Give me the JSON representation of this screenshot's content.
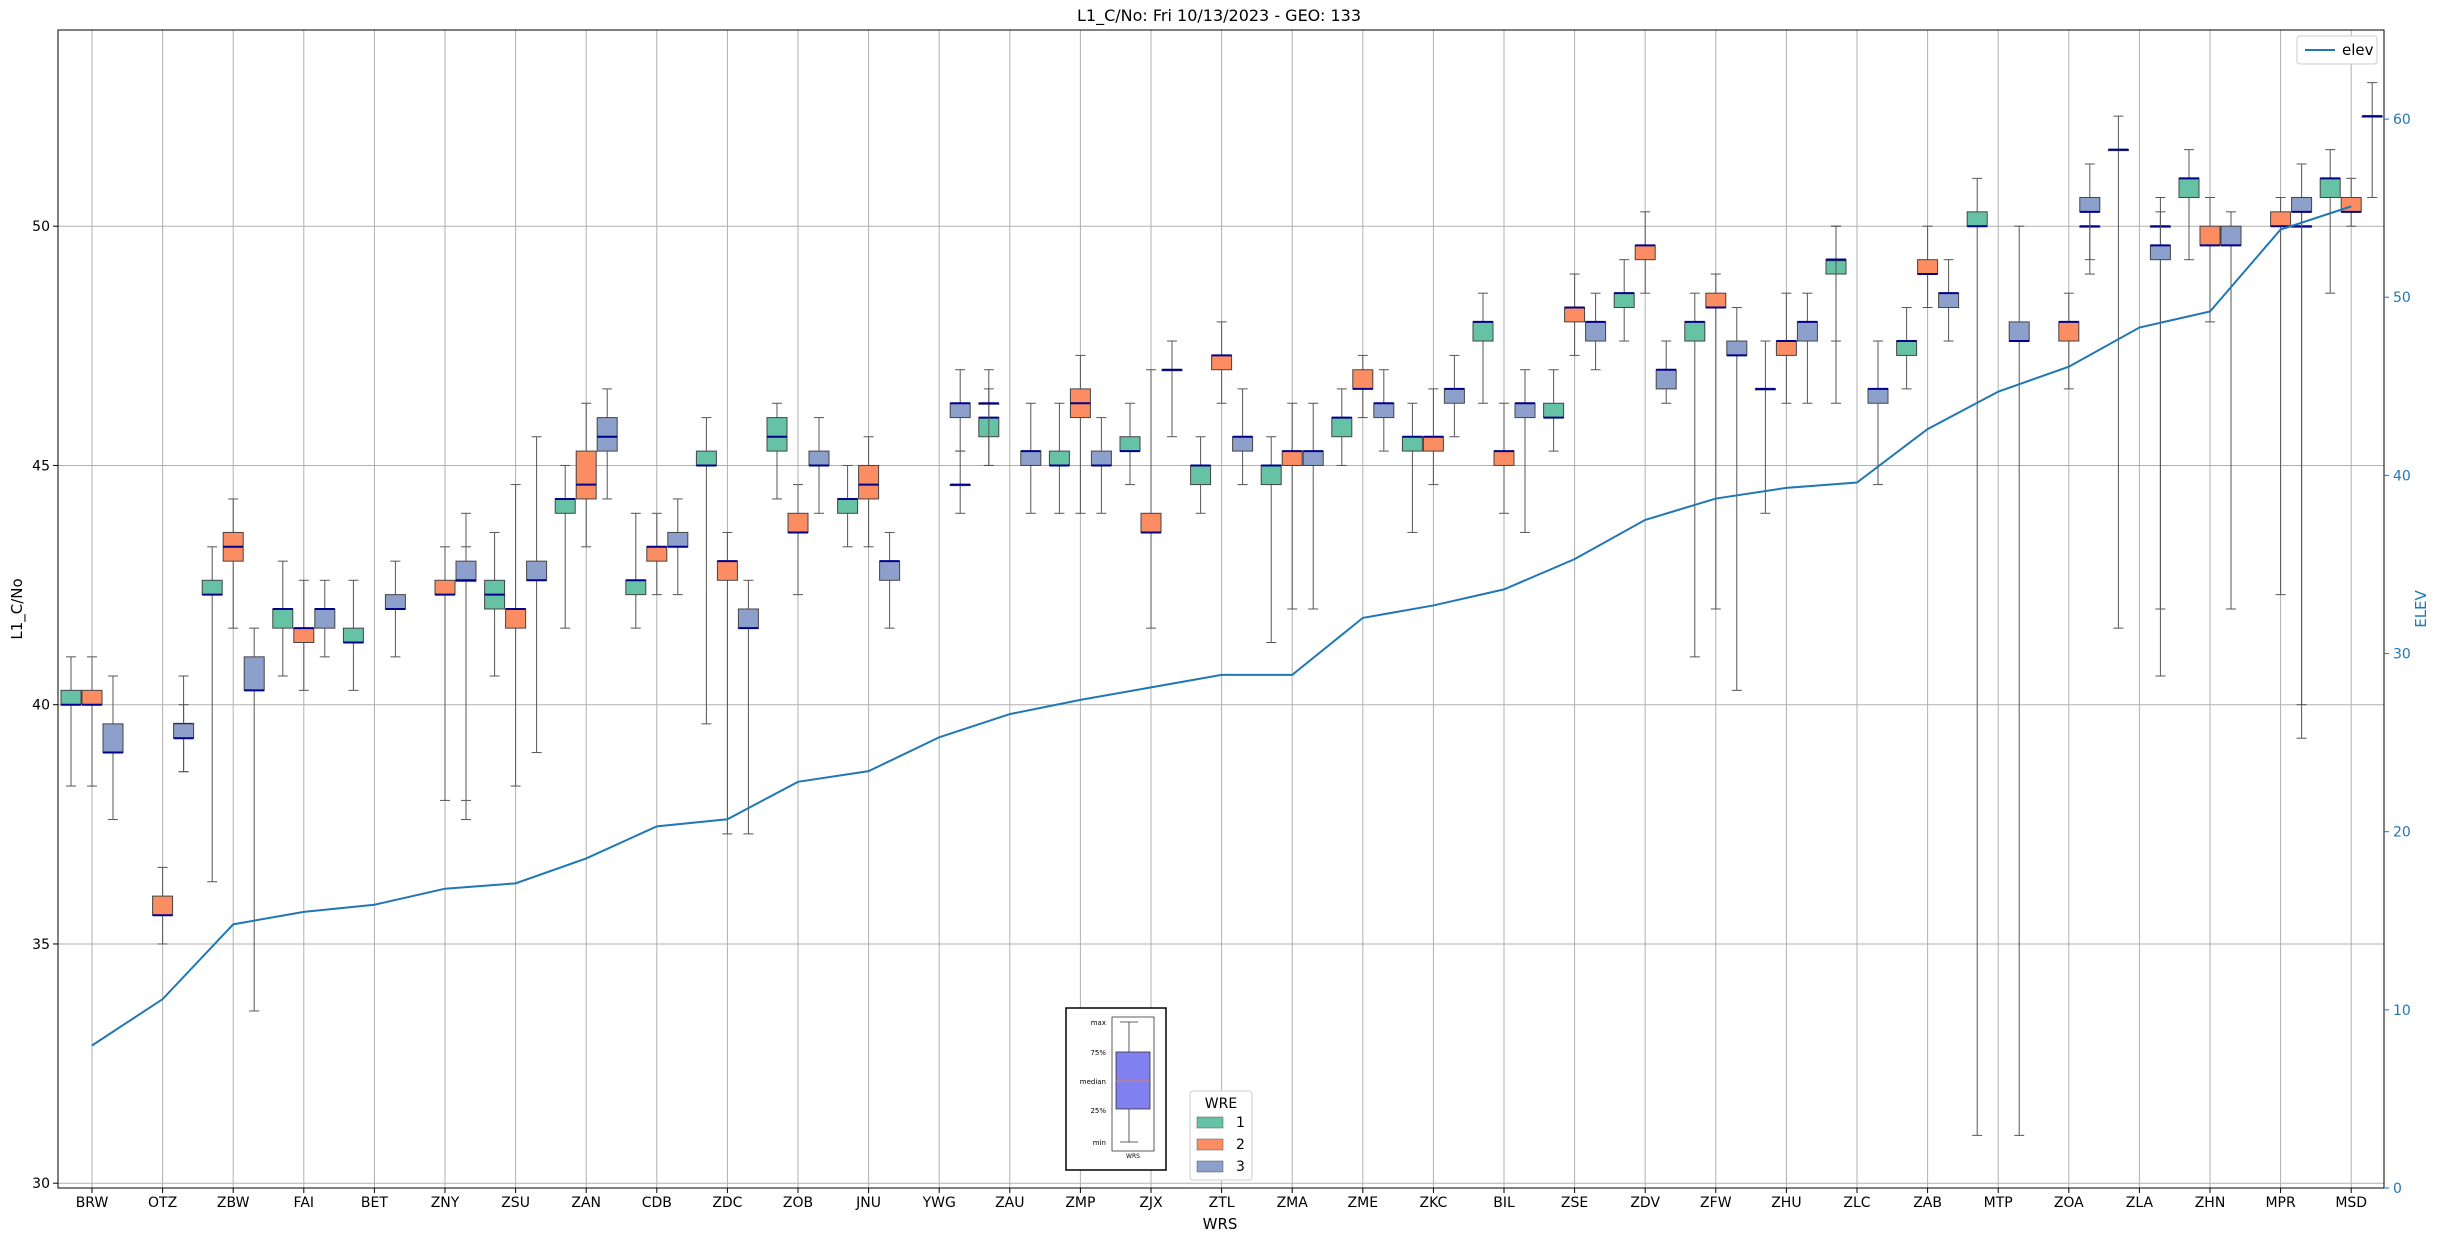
{
  "chart_data": {
    "type": "box",
    "title": "L1_C/No: Fri 10/13/2023 - GEO: 133",
    "xlabel": "WRS",
    "ylabel": "L1_C/No",
    "y2label": "ELEV",
    "ylim": [
      29.9,
      54.1
    ],
    "y2lim": [
      0,
      65
    ],
    "yticks": [
      30,
      35,
      40,
      45,
      50
    ],
    "y2ticks": [
      0,
      10,
      20,
      30,
      40,
      50,
      60
    ],
    "grid": true,
    "categories": [
      "BRW",
      "OTZ",
      "ZBW",
      "FAI",
      "BET",
      "ZNY",
      "ZSU",
      "ZAN",
      "CDB",
      "ZDC",
      "ZOB",
      "JNU",
      "YWG",
      "ZAU",
      "ZMP",
      "ZJX",
      "ZTL",
      "ZMA",
      "ZME",
      "ZKC",
      "BIL",
      "ZSE",
      "ZDV",
      "ZFW",
      "ZHU",
      "ZLC",
      "ZAB",
      "MTP",
      "ZOA",
      "ZLA",
      "ZHN",
      "MPR",
      "MSD"
    ],
    "colors": {
      "1": "#66c2a5",
      "2": "#fc8d62",
      "3": "#8da0cb",
      "median": "#00008b",
      "elev": "#1f77b4",
      "whisker": "#555555"
    },
    "box_series": [
      {
        "name": "1",
        "boxes": [
          {
            "cat": "BRW",
            "min": 38.3,
            "q1": 40.0,
            "med": 40.0,
            "q3": 40.3,
            "max": 41.0
          },
          {
            "cat": "ZBW",
            "min": 36.3,
            "q1": 42.3,
            "med": 42.3,
            "q3": 42.6,
            "max": 43.3
          },
          {
            "cat": "FAI",
            "min": 40.6,
            "q1": 41.6,
            "med": 42.0,
            "q3": 42.0,
            "max": 43.0
          },
          {
            "cat": "BET",
            "min": 40.3,
            "q1": 41.3,
            "med": 41.3,
            "q3": 41.6,
            "max": 42.6
          },
          {
            "cat": "ZSU",
            "min": 40.6,
            "q1": 42.0,
            "med": 42.3,
            "q3": 42.6,
            "max": 43.6
          },
          {
            "cat": "ZAN",
            "min": 41.6,
            "q1": 44.0,
            "med": 44.3,
            "q3": 44.3,
            "max": 45.0
          },
          {
            "cat": "CDB",
            "min": 41.6,
            "q1": 42.3,
            "med": 42.6,
            "q3": 42.6,
            "max": 44.0
          },
          {
            "cat": "ZDC",
            "min": 39.6,
            "q1": 45.0,
            "med": 45.0,
            "q3": 45.3,
            "max": 46.0
          },
          {
            "cat": "ZOB",
            "min": 44.3,
            "q1": 45.3,
            "med": 45.6,
            "q3": 46.0,
            "max": 46.3
          },
          {
            "cat": "JNU",
            "min": 43.3,
            "q1": 44.0,
            "med": 44.3,
            "q3": 44.3,
            "max": 45.0
          },
          {
            "cat": "ZAU",
            "min": 45.0,
            "q1": 45.6,
            "med": 46.0,
            "q3": 46.0,
            "max": 46.6
          },
          {
            "cat": "ZMP",
            "min": 44.0,
            "q1": 45.0,
            "med": 45.0,
            "q3": 45.3,
            "max": 46.3
          },
          {
            "cat": "ZJX",
            "min": 44.6,
            "q1": 45.3,
            "med": 45.3,
            "q3": 45.6,
            "max": 46.3
          },
          {
            "cat": "ZTL",
            "min": 44.0,
            "q1": 44.6,
            "med": 45.0,
            "q3": 45.0,
            "max": 45.6
          },
          {
            "cat": "ZMA",
            "min": 41.3,
            "q1": 44.6,
            "med": 45.0,
            "q3": 45.0,
            "max": 45.6
          },
          {
            "cat": "ZME",
            "min": 45.0,
            "q1": 45.6,
            "med": 46.0,
            "q3": 46.0,
            "max": 46.6
          },
          {
            "cat": "ZKC",
            "min": 43.6,
            "q1": 45.3,
            "med": 45.6,
            "q3": 45.6,
            "max": 46.3
          },
          {
            "cat": "BIL",
            "min": 46.3,
            "q1": 47.6,
            "med": 48.0,
            "q3": 48.0,
            "max": 48.6
          },
          {
            "cat": "ZSE",
            "min": 45.3,
            "q1": 46.0,
            "med": 46.0,
            "q3": 46.3,
            "max": 47.0
          },
          {
            "cat": "ZDV",
            "min": 47.6,
            "q1": 48.3,
            "med": 48.6,
            "q3": 48.6,
            "max": 49.3
          },
          {
            "cat": "ZFW",
            "min": 41.0,
            "q1": 47.6,
            "med": 48.0,
            "q3": 48.0,
            "max": 48.6
          },
          {
            "cat": "ZLC",
            "min": 47.6,
            "q1": 49.0,
            "med": 49.3,
            "q3": 49.3,
            "max": 50.0
          },
          {
            "cat": "ZAB",
            "min": 46.6,
            "q1": 47.3,
            "med": 47.6,
            "q3": 47.6,
            "max": 48.3
          },
          {
            "cat": "MTP",
            "min": 31.0,
            "q1": 50.0,
            "med": 50.0,
            "q3": 50.3,
            "max": 51.0
          },
          {
            "cat": "ZHN",
            "min": 49.3,
            "q1": 50.6,
            "med": 51.0,
            "q3": 51.0,
            "max": 51.6
          },
          {
            "cat": "MSD",
            "min": 48.6,
            "q1": 50.6,
            "med": 51.0,
            "q3": 51.0,
            "max": 51.6
          }
        ]
      },
      {
        "name": "2",
        "boxes": [
          {
            "cat": "BRW",
            "min": 38.3,
            "q1": 40.0,
            "med": 40.0,
            "q3": 40.3,
            "max": 41.0
          },
          {
            "cat": "OTZ",
            "min": 35.0,
            "q1": 35.6,
            "med": 35.6,
            "q3": 36.0,
            "max": 36.6
          },
          {
            "cat": "ZBW",
            "min": 41.6,
            "q1": 43.0,
            "med": 43.3,
            "q3": 43.6,
            "max": 44.3
          },
          {
            "cat": "FAI",
            "min": 40.3,
            "q1": 41.3,
            "med": 41.6,
            "q3": 41.6,
            "max": 42.6
          },
          {
            "cat": "ZNY",
            "min": 38.0,
            "q1": 42.3,
            "med": 42.3,
            "q3": 42.6,
            "max": 43.3
          },
          {
            "cat": "ZSU",
            "min": 38.3,
            "q1": 41.6,
            "med": 42.0,
            "q3": 42.0,
            "max": 44.6
          },
          {
            "cat": "ZAN",
            "min": 43.3,
            "q1": 44.3,
            "med": 44.6,
            "q3": 45.3,
            "max": 46.3
          },
          {
            "cat": "CDB",
            "min": 42.3,
            "q1": 43.0,
            "med": 43.3,
            "q3": 43.3,
            "max": 44.0
          },
          {
            "cat": "ZDC",
            "min": 37.3,
            "q1": 42.6,
            "med": 43.0,
            "q3": 43.0,
            "max": 43.6
          },
          {
            "cat": "ZOB",
            "min": 42.3,
            "q1": 43.6,
            "med": 43.6,
            "q3": 44.0,
            "max": 44.6
          },
          {
            "cat": "JNU",
            "min": 43.3,
            "q1": 44.3,
            "med": 44.6,
            "q3": 45.0,
            "max": 45.6
          },
          {
            "cat": "ZMP",
            "min": 44.0,
            "q1": 46.0,
            "med": 46.3,
            "q3": 46.6,
            "max": 47.3
          },
          {
            "cat": "ZJX",
            "min": 41.6,
            "q1": 43.6,
            "med": 43.6,
            "q3": 44.0,
            "max": 47.0
          },
          {
            "cat": "ZTL",
            "min": 46.3,
            "q1": 47.0,
            "med": 47.3,
            "q3": 47.3,
            "max": 48.0
          },
          {
            "cat": "ZMA",
            "min": 42.0,
            "q1": 45.0,
            "med": 45.3,
            "q3": 45.3,
            "max": 46.3
          },
          {
            "cat": "ZME",
            "min": 46.0,
            "q1": 46.6,
            "med": 46.6,
            "q3": 47.0,
            "max": 47.3
          },
          {
            "cat": "ZKC",
            "min": 44.6,
            "q1": 45.3,
            "med": 45.6,
            "q3": 45.6,
            "max": 46.6
          },
          {
            "cat": "BIL",
            "min": 44.0,
            "q1": 45.0,
            "med": 45.3,
            "q3": 45.3,
            "max": 46.3
          },
          {
            "cat": "ZSE",
            "min": 47.3,
            "q1": 48.0,
            "med": 48.3,
            "q3": 48.3,
            "max": 49.0
          },
          {
            "cat": "ZDV",
            "min": 48.6,
            "q1": 49.3,
            "med": 49.6,
            "q3": 49.6,
            "max": 50.3
          },
          {
            "cat": "ZFW",
            "min": 42.0,
            "q1": 48.3,
            "med": 48.3,
            "q3": 48.6,
            "max": 49.0
          },
          {
            "cat": "ZHU",
            "min": 46.3,
            "q1": 47.3,
            "med": 47.6,
            "q3": 47.6,
            "max": 48.6
          },
          {
            "cat": "ZAB",
            "min": 48.3,
            "q1": 49.0,
            "med": 49.0,
            "q3": 49.3,
            "max": 50.0
          },
          {
            "cat": "ZOA",
            "min": 46.6,
            "q1": 47.6,
            "med": 48.0,
            "q3": 48.0,
            "max": 48.6
          },
          {
            "cat": "ZHN",
            "min": 48.0,
            "q1": 49.6,
            "med": 49.6,
            "q3": 50.0,
            "max": 50.6
          },
          {
            "cat": "MPR",
            "min": 42.3,
            "q1": 50.0,
            "med": 50.0,
            "q3": 50.3,
            "max": 50.6
          },
          {
            "cat": "MSD",
            "min": 50.0,
            "q1": 50.3,
            "med": 50.3,
            "q3": 50.6,
            "max": 51.0
          }
        ]
      },
      {
        "name": "3",
        "boxes": [
          {
            "cat": "BRW",
            "min": 37.6,
            "q1": 39.0,
            "med": 39.0,
            "q3": 39.6,
            "max": 40.6
          },
          {
            "cat": "OTZ",
            "min": 38.6,
            "q1": 39.6,
            "med": 39.6,
            "q3": 39.6,
            "max": 40.6
          },
          {
            "cat": "OTZ2",
            "min": 38.6,
            "q1": 39.3,
            "med": 39.3,
            "q3": 39.6,
            "max": 40.0
          },
          {
            "cat": "ZBW",
            "min": 33.6,
            "q1": 40.3,
            "med": 40.3,
            "q3": 41.0,
            "max": 41.6
          },
          {
            "cat": "FAI",
            "min": 41.0,
            "q1": 41.6,
            "med": 42.0,
            "q3": 42.0,
            "max": 42.6
          },
          {
            "cat": "BET",
            "min": 41.0,
            "q1": 42.0,
            "med": 42.0,
            "q3": 42.3,
            "max": 43.0
          },
          {
            "cat": "ZNY",
            "min": 37.6,
            "q1": 42.6,
            "med": 42.6,
            "q3": 42.6,
            "max": 43.3
          },
          {
            "cat": "ZNY2",
            "min": 38.0,
            "q1": 42.6,
            "med": 42.6,
            "q3": 43.0,
            "max": 44.0
          },
          {
            "cat": "ZSU",
            "min": 39.0,
            "q1": 42.6,
            "med": 42.6,
            "q3": 43.0,
            "max": 45.6
          },
          {
            "cat": "ZAN",
            "min": 44.3,
            "q1": 45.3,
            "med": 45.6,
            "q3": 46.0,
            "max": 46.6
          },
          {
            "cat": "CDB",
            "min": 42.3,
            "q1": 43.3,
            "med": 43.3,
            "q3": 43.6,
            "max": 44.3
          },
          {
            "cat": "ZDC",
            "min": 37.3,
            "q1": 41.6,
            "med": 41.6,
            "q3": 42.0,
            "max": 42.6
          },
          {
            "cat": "ZOB",
            "min": 44.0,
            "q1": 45.0,
            "med": 45.0,
            "q3": 45.3,
            "max": 46.0
          },
          {
            "cat": "JNU",
            "min": 41.6,
            "q1": 42.6,
            "med": 43.0,
            "q3": 43.0,
            "max": 43.6
          },
          {
            "cat": "YWG",
            "min": 44.0,
            "q1": 44.6,
            "med": 44.6,
            "q3": 44.6,
            "max": 45.3
          },
          {
            "cat": "YWG2",
            "min": 45.3,
            "q1": 46.0,
            "med": 46.3,
            "q3": 46.3,
            "max": 47.0
          },
          {
            "cat": "ZAU",
            "min": 44.0,
            "q1": 45.0,
            "med": 45.3,
            "q3": 45.3,
            "max": 46.3
          },
          {
            "cat": "ZAU0",
            "min": 45.0,
            "q1": 46.3,
            "med": 46.3,
            "q3": 46.3,
            "max": 47.0
          },
          {
            "cat": "ZMP",
            "min": 44.0,
            "q1": 45.0,
            "med": 45.0,
            "q3": 45.3,
            "max": 46.0
          },
          {
            "cat": "ZJX",
            "min": 45.6,
            "q1": 47.0,
            "med": 47.0,
            "q3": 47.0,
            "max": 47.6
          },
          {
            "cat": "ZTL",
            "min": 44.6,
            "q1": 45.3,
            "med": 45.6,
            "q3": 45.6,
            "max": 46.6
          },
          {
            "cat": "ZMA",
            "min": 42.0,
            "q1": 45.0,
            "med": 45.3,
            "q3": 45.3,
            "max": 46.3
          },
          {
            "cat": "ZME",
            "min": 45.3,
            "q1": 46.0,
            "med": 46.3,
            "q3": 46.3,
            "max": 47.0
          },
          {
            "cat": "ZKC",
            "min": 45.6,
            "q1": 46.3,
            "med": 46.6,
            "q3": 46.6,
            "max": 47.3
          },
          {
            "cat": "BIL",
            "min": 43.6,
            "q1": 46.0,
            "med": 46.3,
            "q3": 46.3,
            "max": 47.0
          },
          {
            "cat": "ZSE",
            "min": 47.0,
            "q1": 47.6,
            "med": 48.0,
            "q3": 48.0,
            "max": 48.6
          },
          {
            "cat": "ZDV",
            "min": 46.3,
            "q1": 46.6,
            "med": 47.0,
            "q3": 47.0,
            "max": 47.6
          },
          {
            "cat": "ZFW",
            "min": 40.3,
            "q1": 47.3,
            "med": 47.3,
            "q3": 47.6,
            "max": 48.3
          },
          {
            "cat": "ZHU",
            "min": 46.3,
            "q1": 47.6,
            "med": 48.0,
            "q3": 48.0,
            "max": 48.6
          },
          {
            "cat": "ZHU0",
            "min": 44.0,
            "q1": 46.6,
            "med": 46.6,
            "q3": 46.6,
            "max": 47.6
          },
          {
            "cat": "ZLC",
            "min": 44.6,
            "q1": 46.3,
            "med": 46.6,
            "q3": 46.6,
            "max": 47.6
          },
          {
            "cat": "ZLC0",
            "min": 46.3,
            "q1": 49.3,
            "med": 49.3,
            "q3": 49.3,
            "max": 50.0
          },
          {
            "cat": "ZAB",
            "min": 47.6,
            "q1": 48.3,
            "med": 48.6,
            "q3": 48.6,
            "max": 49.3
          },
          {
            "cat": "MTP",
            "min": 31.0,
            "q1": 47.6,
            "med": 47.6,
            "q3": 48.0,
            "max": 50.0
          },
          {
            "cat": "ZOA",
            "min": 49.0,
            "q1": 50.0,
            "med": 50.0,
            "q3": 50.0,
            "max": 50.6
          },
          {
            "cat": "ZOA2",
            "min": 49.3,
            "q1": 50.3,
            "med": 50.3,
            "q3": 50.6,
            "max": 51.3
          },
          {
            "cat": "ZLA",
            "min": 42.0,
            "q1": 50.0,
            "med": 50.0,
            "q3": 50.0,
            "max": 50.6
          },
          {
            "cat": "ZLA0",
            "min": 41.6,
            "q1": 51.6,
            "med": 51.6,
            "q3": 51.6,
            "max": 52.3
          },
          {
            "cat": "ZLA2",
            "min": 40.6,
            "q1": 49.3,
            "med": 49.6,
            "q3": 49.6,
            "max": 50.3
          },
          {
            "cat": "ZHN",
            "min": 42.0,
            "q1": 49.6,
            "med": 49.6,
            "q3": 50.0,
            "max": 50.3
          },
          {
            "cat": "MPR",
            "min": 39.3,
            "q1": 50.0,
            "med": 50.0,
            "q3": 50.0,
            "max": 50.6
          },
          {
            "cat": "MPR2",
            "min": 40.0,
            "q1": 50.3,
            "med": 50.3,
            "q3": 50.6,
            "max": 51.3
          },
          {
            "cat": "MSD",
            "min": 50.6,
            "q1": 52.3,
            "med": 52.3,
            "q3": 52.3,
            "max": 53.0
          }
        ]
      }
    ],
    "elev_line": {
      "name": "elev",
      "values": [
        8.0,
        10.6,
        14.8,
        15.5,
        15.9,
        16.8,
        17.1,
        18.5,
        20.3,
        20.7,
        22.8,
        23.4,
        25.3,
        26.6,
        27.4,
        28.1,
        28.8,
        28.8,
        32.0,
        32.7,
        33.6,
        35.3,
        37.5,
        38.7,
        39.3,
        39.6,
        42.6,
        44.7,
        46.1,
        48.3,
        49.2,
        53.8,
        55.1
      ]
    },
    "legend_main": [
      "elev"
    ],
    "legend_wre": {
      "title": "WRE",
      "entries": [
        "1",
        "2",
        "3"
      ]
    },
    "inset_key": {
      "labels": [
        "max",
        "75%",
        "median",
        "25%",
        "min"
      ],
      "xlabel": "WRS"
    }
  }
}
